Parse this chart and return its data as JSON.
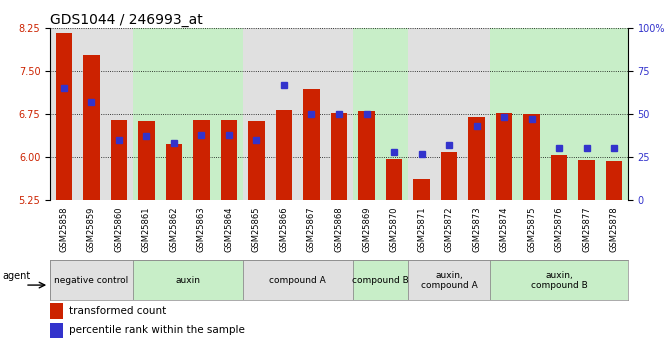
{
  "title": "GDS1044 / 246993_at",
  "samples": [
    "GSM25858",
    "GSM25859",
    "GSM25860",
    "GSM25861",
    "GSM25862",
    "GSM25863",
    "GSM25864",
    "GSM25865",
    "GSM25866",
    "GSM25867",
    "GSM25868",
    "GSM25869",
    "GSM25870",
    "GSM25871",
    "GSM25872",
    "GSM25873",
    "GSM25874",
    "GSM25875",
    "GSM25876",
    "GSM25877",
    "GSM25878"
  ],
  "bar_values": [
    8.15,
    7.78,
    6.65,
    6.63,
    6.23,
    6.65,
    6.65,
    6.63,
    6.82,
    7.18,
    6.77,
    6.8,
    5.97,
    5.62,
    6.08,
    6.7,
    6.77,
    6.75,
    6.04,
    5.95,
    5.93
  ],
  "dot_values_pct": [
    65,
    57,
    35,
    37,
    33,
    38,
    38,
    35,
    67,
    50,
    50,
    50,
    28,
    27,
    32,
    43,
    48,
    47,
    30,
    30,
    30
  ],
  "ylim_left": [
    5.25,
    8.25
  ],
  "ylim_right": [
    0,
    100
  ],
  "yticks_left": [
    5.25,
    6.0,
    6.75,
    7.5,
    8.25
  ],
  "yticks_right": [
    0,
    25,
    50,
    75,
    100
  ],
  "ytick_labels_right": [
    "0",
    "25",
    "50",
    "75",
    "100%"
  ],
  "bar_color": "#cc2200",
  "dot_color": "#3333cc",
  "groups": [
    {
      "label": "negative control",
      "start": 0,
      "end": 3,
      "color": "#e0e0e0"
    },
    {
      "label": "auxin",
      "start": 3,
      "end": 7,
      "color": "#c8eec8"
    },
    {
      "label": "compound A",
      "start": 7,
      "end": 11,
      "color": "#e0e0e0"
    },
    {
      "label": "compound B",
      "start": 11,
      "end": 13,
      "color": "#c8eec8"
    },
    {
      "label": "auxin,\ncompound A",
      "start": 13,
      "end": 16,
      "color": "#e0e0e0"
    },
    {
      "label": "auxin,\ncompound B",
      "start": 16,
      "end": 21,
      "color": "#c8eec8"
    }
  ],
  "legend_items": [
    {
      "label": "transformed count",
      "color": "#cc2200"
    },
    {
      "label": "percentile rank within the sample",
      "color": "#3333cc"
    }
  ],
  "title_fontsize": 10,
  "bar_width": 0.6
}
